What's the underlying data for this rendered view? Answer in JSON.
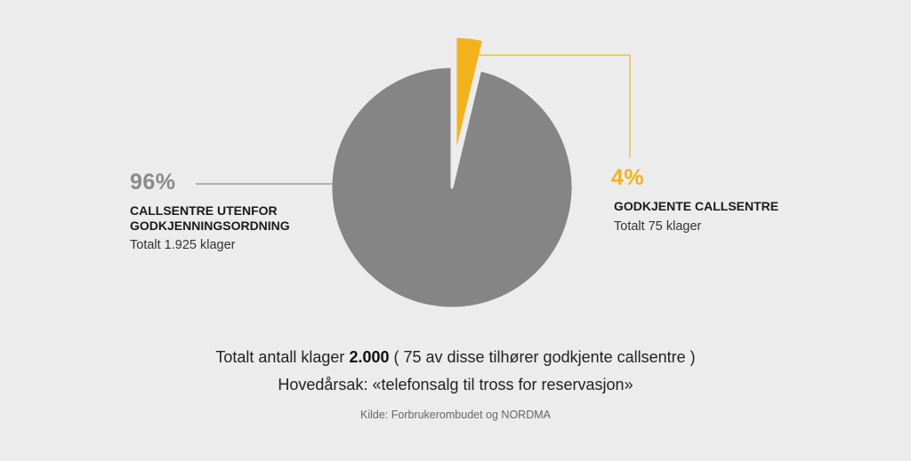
{
  "chart_data": {
    "type": "pie",
    "slices": [
      {
        "name": "CALLSENTRE UTENFOR GODKJENNINGSORDNING",
        "value": 1925,
        "percent_label": "96%",
        "detail": "Totalt 1.925 klager",
        "color": "#858585"
      },
      {
        "name": "GODKJENTE CALLSENTRE",
        "value": 75,
        "percent_label": "4%",
        "detail": "Totalt 75 klager",
        "color": "#f2b21c"
      }
    ]
  },
  "footer": {
    "line1_prefix": "Totalt antall klager",
    "line1_total": "2.000",
    "line1_suffix": "( 75 av disse tilhører godkjente callsentre )",
    "line2": "Hovedårsak: «telefonsalg til tross for reservasjon»",
    "source": "Kilde: Forbrukerombudet og NORDMA"
  },
  "colors": {
    "background": "#ececec",
    "main_slice": "#858585",
    "highlight_slice": "#f2b21c",
    "leader_left": "#8a8a8a",
    "leader_right": "#f2b21c"
  }
}
